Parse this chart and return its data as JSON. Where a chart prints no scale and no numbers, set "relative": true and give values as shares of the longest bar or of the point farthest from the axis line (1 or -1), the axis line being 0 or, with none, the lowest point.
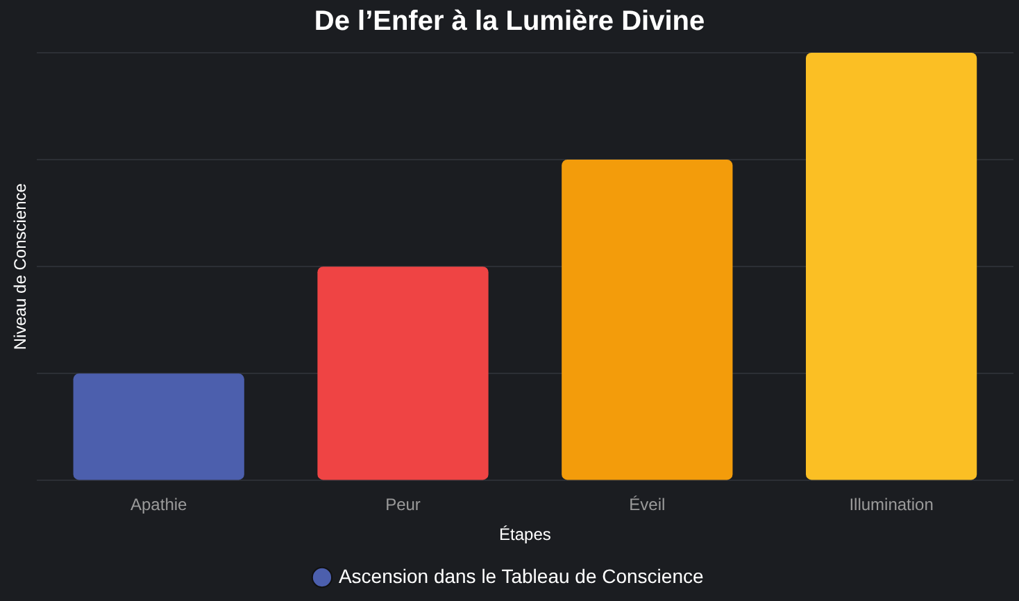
{
  "chart_data": {
    "type": "bar",
    "title": "De l’Enfer à la Lumière Divine",
    "xlabel": "Étapes",
    "ylabel": "Niveau de Conscience",
    "categories": [
      "Apathie",
      "Peur",
      "Éveil",
      "Illumination"
    ],
    "series": [
      {
        "name": "Ascension dans le Tableau de Conscience",
        "color": "#4c5fad",
        "colors": [
          "#4c5fad",
          "#ef4444",
          "#f39c0b",
          "#fbbf24"
        ],
        "values": [
          0.25,
          0.5,
          0.75,
          1
        ]
      }
    ],
    "relative": true,
    "grid": "y",
    "legend": "bottom"
  }
}
